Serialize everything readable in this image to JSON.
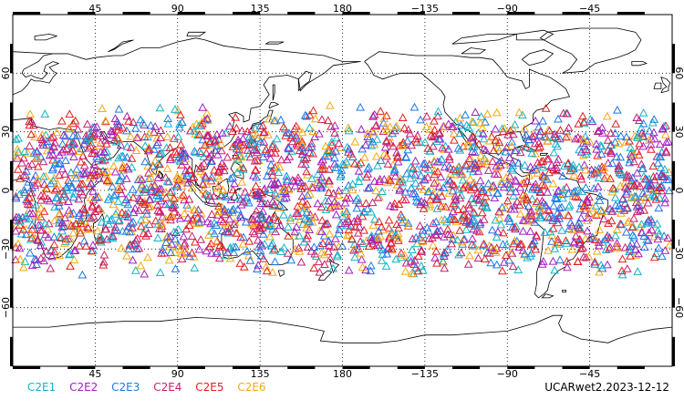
{
  "map": {
    "projection": "cylindrical-equidistant",
    "center_longitude": 180,
    "lon_range": [
      0,
      360
    ],
    "lat_range": [
      -90,
      90
    ],
    "grid": "dotted",
    "top_lon_labels": [
      "45",
      "90",
      "135",
      "180",
      "−135",
      "−90",
      "−45"
    ],
    "bottom_lon_labels": [
      "45",
      "90",
      "135",
      "180",
      "−135",
      "−90",
      "−45"
    ],
    "lat_labels": [
      "60",
      "30",
      "0",
      "−30",
      "−60"
    ],
    "lat_values": [
      60,
      30,
      0,
      -30,
      -60
    ],
    "lon_values": [
      45,
      90,
      135,
      180,
      225,
      270,
      315
    ]
  },
  "observations": {
    "marker": "open-triangle",
    "coverage_lat": [
      -45,
      45
    ],
    "count_per_series": 420
  },
  "legend": {
    "series": [
      {
        "name": "C2E1",
        "color": "#14b4c8"
      },
      {
        "name": "C2E2",
        "color": "#a020c0"
      },
      {
        "name": "C2E3",
        "color": "#1e78e6"
      },
      {
        "name": "C2E4",
        "color": "#c81e6e"
      },
      {
        "name": "C2E5",
        "color": "#e61e1e"
      },
      {
        "name": "C2E6",
        "color": "#f5aa14"
      }
    ]
  },
  "dataset_label": "UCARwet2.2023-12-12"
}
